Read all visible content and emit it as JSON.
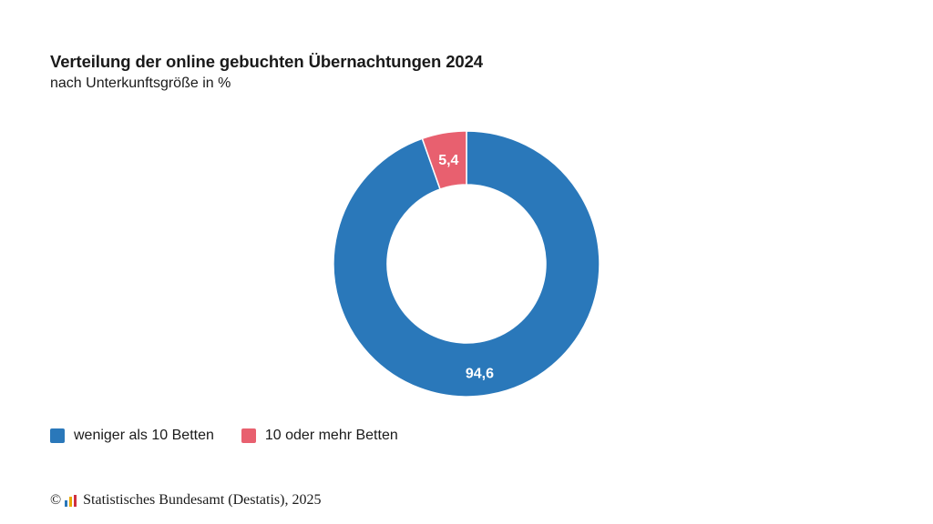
{
  "chart_data": {
    "type": "pie",
    "variant": "donut",
    "title": "Verteilung der online gebuchten Übernachtungen 2024",
    "subtitle": "nach Unterkunftsgröße in %",
    "categories": [
      "weniger als 10 Betten",
      "10 oder mehr Betten"
    ],
    "values": [
      94.6,
      5.4
    ],
    "value_labels": [
      "94,6",
      "5,4"
    ],
    "colors": [
      "#2a78ba",
      "#e8606f"
    ],
    "legend_position": "bottom-left"
  },
  "footer": {
    "copyright_symbol": "©",
    "source": "Statistisches Bundesamt (Destatis), 2025",
    "logo_icon": "destatis-logo-icon",
    "logo_colors": [
      "#2a78ba",
      "#e8a800",
      "#d03040"
    ]
  }
}
